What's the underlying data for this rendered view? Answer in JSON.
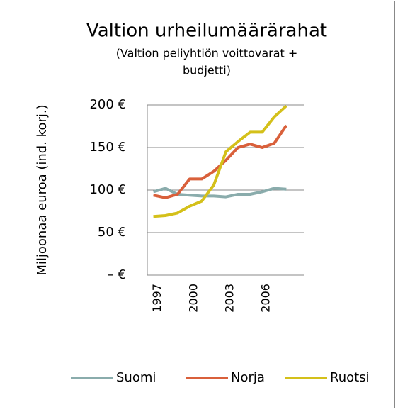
{
  "chart_data": {
    "type": "line",
    "title": "Valtion urheilumäärärahat",
    "subtitle": [
      "(Valtion peliyhtiön voittovarat +",
      "budjetti)"
    ],
    "y_label": "Miljoonaa euroa (ind. korj.)",
    "categories": [
      "1997",
      null,
      null,
      "2000",
      null,
      null,
      "2003",
      null,
      null,
      "2006",
      null,
      null,
      null
    ],
    "series": [
      {
        "name": "Suomi",
        "color": "#8aacac",
        "values": [
          98,
          102,
          95,
          94,
          93,
          93,
          92,
          95,
          95,
          98,
          102,
          101,
          null
        ]
      },
      {
        "name": "Norja",
        "color": "#d9603b",
        "values": [
          94,
          91,
          95,
          113,
          113,
          122,
          135,
          150,
          154,
          150,
          155,
          176,
          null
        ]
      },
      {
        "name": "Ruotsi",
        "color": "#d4c01a",
        "values": [
          69,
          70,
          73,
          81,
          87,
          106,
          145,
          157,
          168,
          168,
          186,
          199,
          null
        ]
      }
    ],
    "ylim": [
      0,
      200
    ],
    "yticks": [
      {
        "value": 0,
        "label": "–   €"
      },
      {
        "value": 50,
        "label": "50 €"
      },
      {
        "value": 100,
        "label": "100 €"
      },
      {
        "value": 150,
        "label": "150 €"
      },
      {
        "value": 200,
        "label": "200 €"
      }
    ],
    "grid": true,
    "legend": "bottom"
  }
}
